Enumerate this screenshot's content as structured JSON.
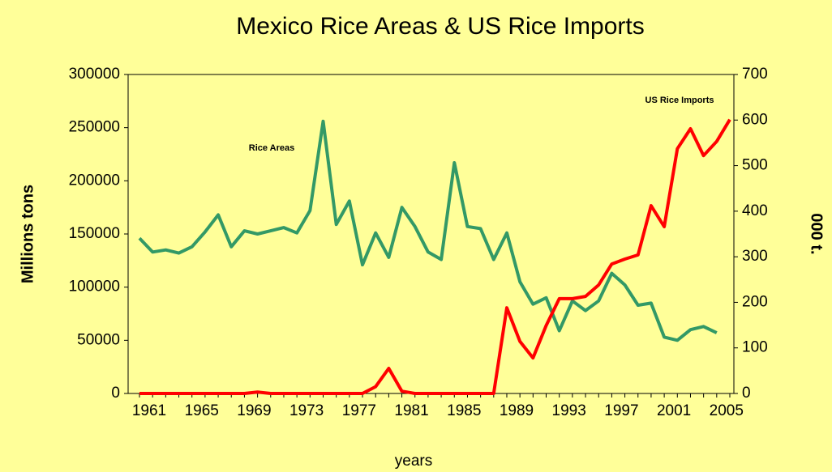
{
  "chart_data": {
    "type": "line",
    "title": "Mexico Rice Areas & US Rice Imports",
    "xlabel": "years",
    "ylabel": "Millions tons",
    "y2label": "000 t.",
    "categories": [
      "1961",
      null,
      null,
      null,
      "1965",
      null,
      null,
      null,
      "1969",
      null,
      null,
      null,
      "1973",
      null,
      null,
      null,
      "1977",
      null,
      null,
      null,
      "1981",
      null,
      null,
      null,
      "1985",
      null,
      null,
      null,
      "1989",
      null,
      null,
      null,
      "1993",
      null,
      null,
      null,
      "1997",
      null,
      null,
      null,
      "2001",
      null,
      null,
      null,
      "2005",
      null
    ],
    "series": [
      {
        "name": "Rice Areas",
        "color": "#339966",
        "values": [
          146000,
          133000,
          135000,
          132000,
          138000,
          152000,
          168000,
          138000,
          153000,
          150000,
          153000,
          156000,
          151000,
          172000,
          256000,
          159000,
          181000,
          121000,
          151000,
          128000,
          175000,
          157000,
          133000,
          126000,
          217000,
          157000,
          155000,
          126000,
          151000,
          105000,
          84000,
          90000,
          59000,
          87000,
          78000,
          87000,
          113000,
          102000,
          83000,
          85000,
          53000,
          50000,
          60000,
          63000,
          57000,
          null
        ]
      },
      {
        "name": "US Rice Imports",
        "color": "#ff0000",
        "axis": "y2",
        "values": [
          0,
          0,
          0,
          0,
          0,
          0,
          0,
          0,
          0,
          3,
          0,
          0,
          0,
          0,
          0,
          0,
          0,
          0,
          15,
          55,
          5,
          0,
          0,
          0,
          0,
          0,
          0,
          0,
          188,
          114,
          78,
          149,
          208,
          208,
          213,
          238,
          284,
          295,
          304,
          412,
          366,
          537,
          581,
          522,
          553,
          601
        ]
      }
    ],
    "ylim": [
      0,
      300000
    ],
    "yticks": [
      0,
      50000,
      100000,
      150000,
      200000,
      250000,
      300000
    ],
    "y2lim": [
      0,
      700
    ],
    "y2ticks": [
      0,
      100,
      200,
      300,
      400,
      500,
      600,
      700
    ],
    "grid": false
  }
}
